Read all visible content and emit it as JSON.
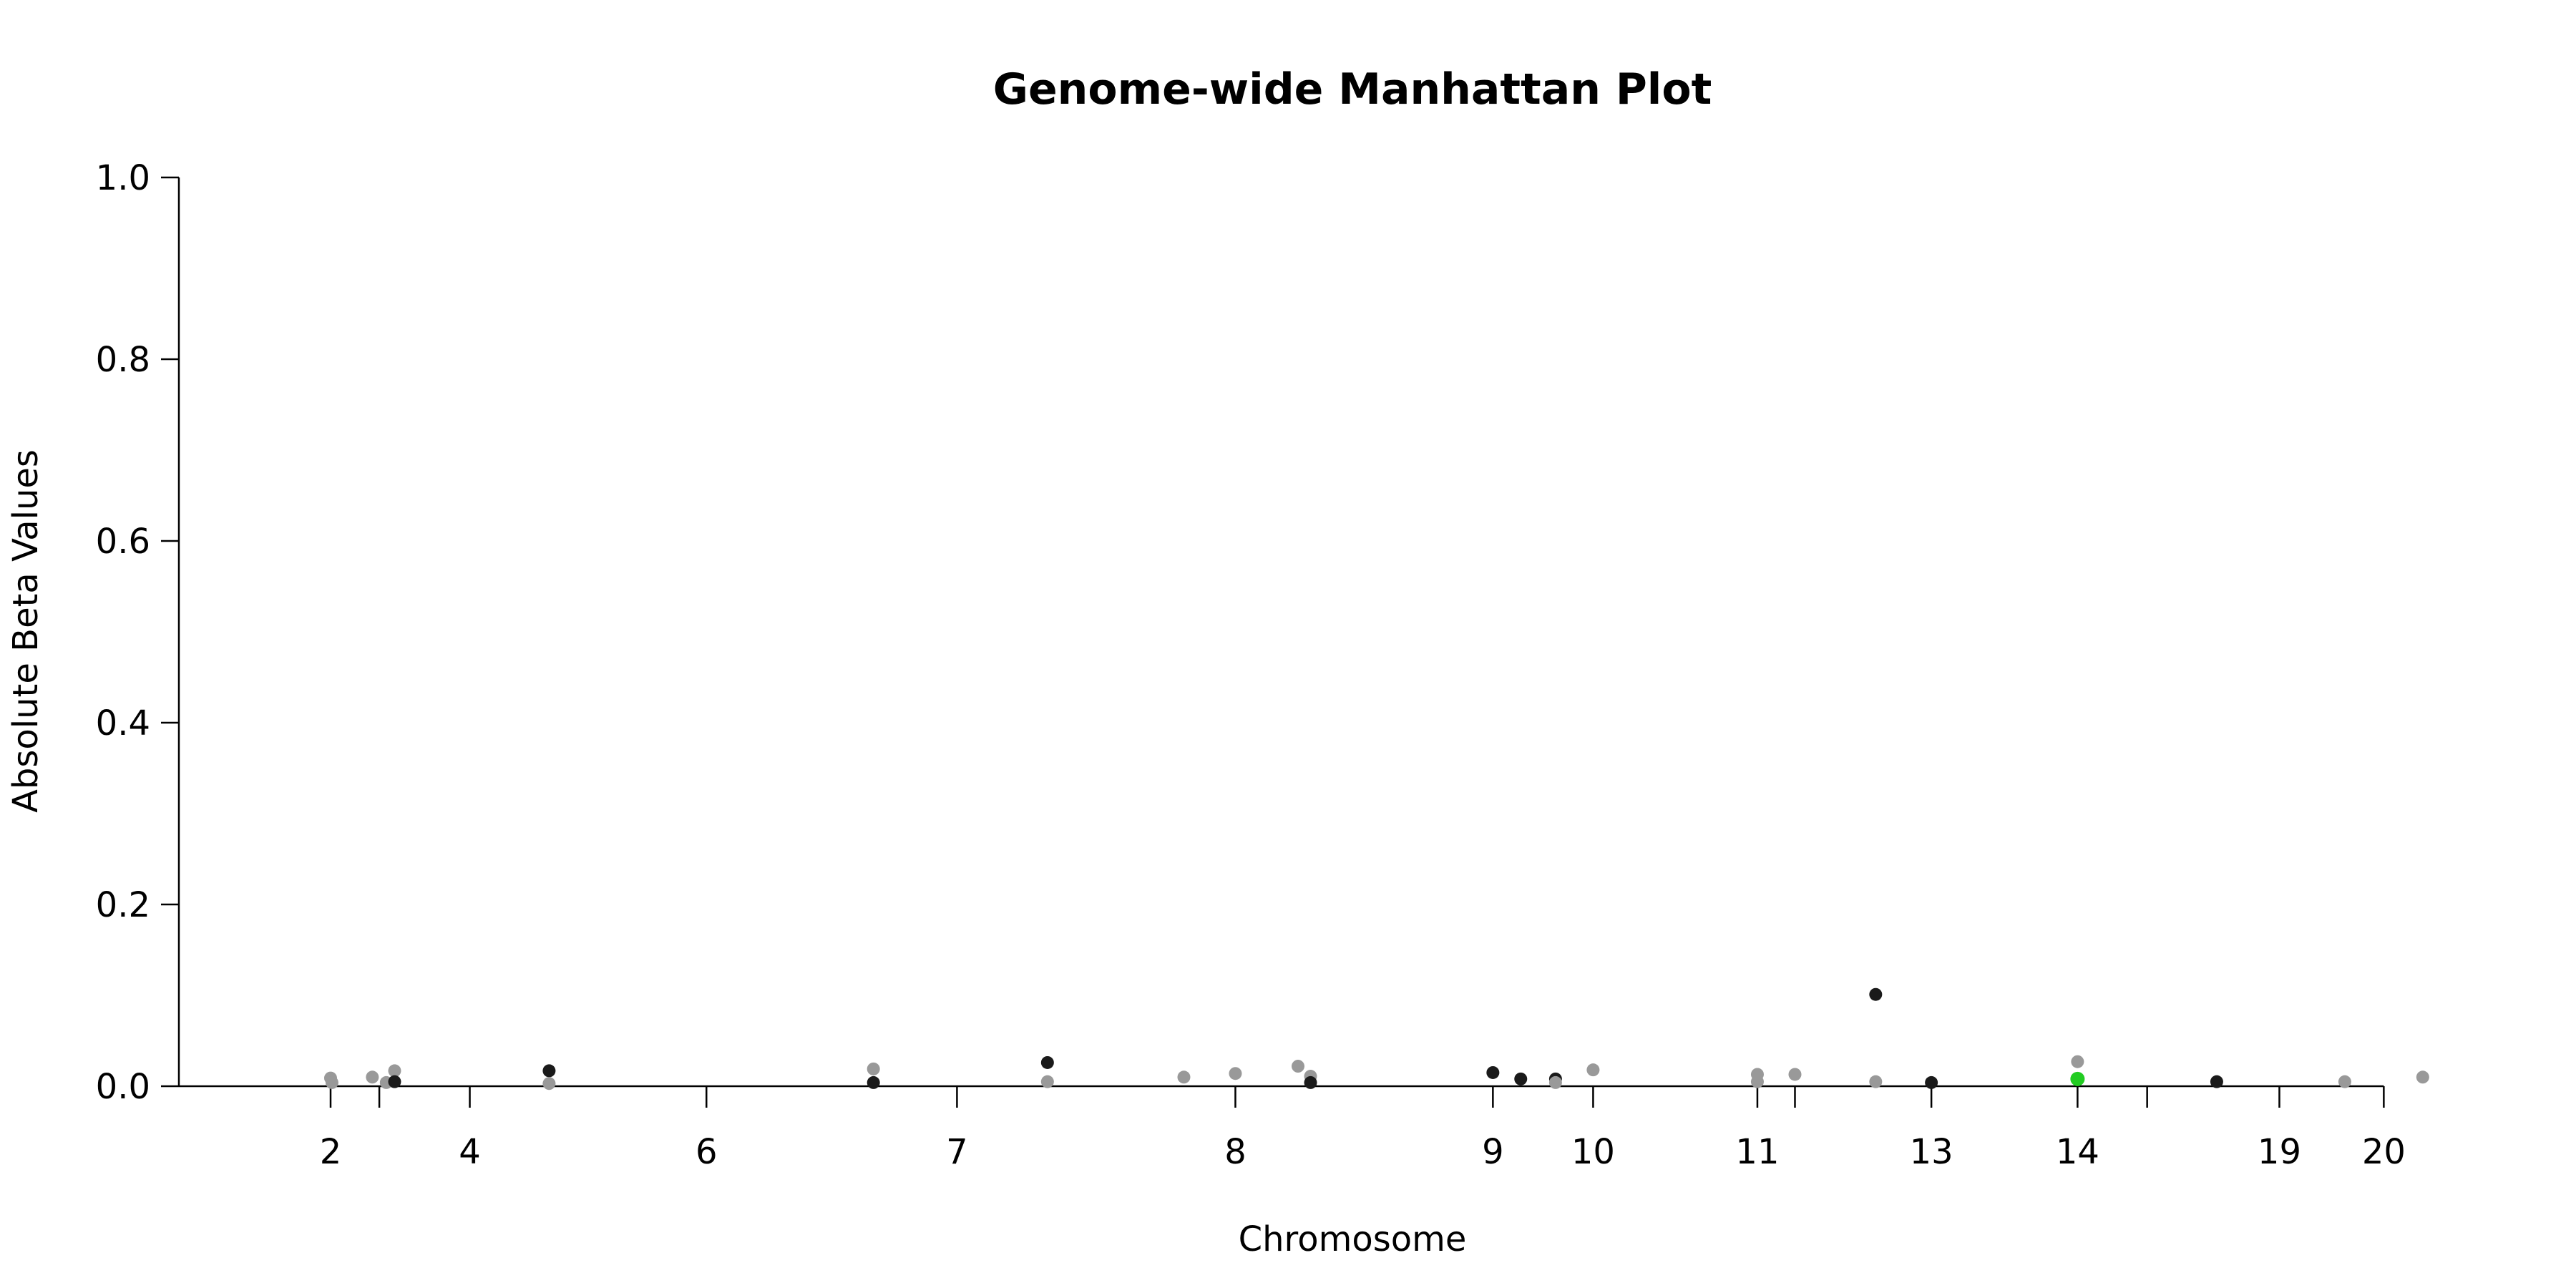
{
  "chart_data": {
    "type": "scatter",
    "title": "Genome-wide Manhattan Plot",
    "xlabel": "Chromosome",
    "ylabel": "Absolute Beta Values",
    "ylim": [
      0,
      1
    ],
    "y_ticks": [
      "0.0",
      "0.2",
      "0.4",
      "0.6",
      "0.8",
      "1.0"
    ],
    "x_ticks": [
      {
        "label": "2",
        "pos": 0.0
      },
      {
        "label": "",
        "pos": 0.35
      },
      {
        "label": "4",
        "pos": 1.0
      },
      {
        "label": "6",
        "pos": 2.7
      },
      {
        "label": "7",
        "pos": 4.5
      },
      {
        "label": "8",
        "pos": 6.5
      },
      {
        "label": "9",
        "pos": 8.35
      },
      {
        "label": "10",
        "pos": 9.07
      },
      {
        "label": "11",
        "pos": 10.25
      },
      {
        "label": "",
        "pos": 10.52
      },
      {
        "label": "13",
        "pos": 11.5
      },
      {
        "label": "14",
        "pos": 12.55
      },
      {
        "label": "",
        "pos": 13.05
      },
      {
        "label": "19",
        "pos": 14.0
      },
      {
        "label": "20",
        "pos": 14.75
      }
    ],
    "x_range": [
      0,
      15.0
    ],
    "grid": false,
    "legend": "none",
    "colors": {
      "dark": "#1a1a1a",
      "light": "#999999",
      "highlight": "#22cc22"
    },
    "points": [
      {
        "x": 0.0,
        "y": 0.009,
        "c": "light"
      },
      {
        "x": 0.01,
        "y": 0.004,
        "c": "light"
      },
      {
        "x": 0.3,
        "y": 0.01,
        "c": "light"
      },
      {
        "x": 0.4,
        "y": 0.004,
        "c": "light"
      },
      {
        "x": 0.46,
        "y": 0.017,
        "c": "light"
      },
      {
        "x": 0.46,
        "y": 0.005,
        "c": "dark"
      },
      {
        "x": 1.57,
        "y": 0.017,
        "c": "dark"
      },
      {
        "x": 1.57,
        "y": 0.003,
        "c": "light"
      },
      {
        "x": 3.9,
        "y": 0.019,
        "c": "light"
      },
      {
        "x": 3.9,
        "y": 0.004,
        "c": "dark"
      },
      {
        "x": 5.15,
        "y": 0.026,
        "c": "dark"
      },
      {
        "x": 5.15,
        "y": 0.005,
        "c": "light"
      },
      {
        "x": 6.13,
        "y": 0.01,
        "c": "light"
      },
      {
        "x": 6.5,
        "y": 0.014,
        "c": "light"
      },
      {
        "x": 6.95,
        "y": 0.022,
        "c": "light"
      },
      {
        "x": 7.04,
        "y": 0.011,
        "c": "light"
      },
      {
        "x": 7.04,
        "y": 0.004,
        "c": "dark"
      },
      {
        "x": 8.35,
        "y": 0.015,
        "c": "dark"
      },
      {
        "x": 8.55,
        "y": 0.008,
        "c": "dark"
      },
      {
        "x": 8.8,
        "y": 0.008,
        "c": "dark"
      },
      {
        "x": 8.8,
        "y": 0.004,
        "c": "light"
      },
      {
        "x": 9.07,
        "y": 0.018,
        "c": "light"
      },
      {
        "x": 10.25,
        "y": 0.013,
        "c": "light"
      },
      {
        "x": 10.25,
        "y": 0.005,
        "c": "light"
      },
      {
        "x": 10.52,
        "y": 0.013,
        "c": "light"
      },
      {
        "x": 11.1,
        "y": 0.101,
        "c": "dark"
      },
      {
        "x": 11.1,
        "y": 0.005,
        "c": "light"
      },
      {
        "x": 11.5,
        "y": 0.004,
        "c": "dark"
      },
      {
        "x": 12.55,
        "y": 0.027,
        "c": "light"
      },
      {
        "x": 12.55,
        "y": 0.008,
        "c": "highlight"
      },
      {
        "x": 13.55,
        "y": 0.005,
        "c": "dark"
      },
      {
        "x": 14.47,
        "y": 0.005,
        "c": "light"
      },
      {
        "x": 15.03,
        "y": 0.01,
        "c": "light"
      }
    ]
  }
}
